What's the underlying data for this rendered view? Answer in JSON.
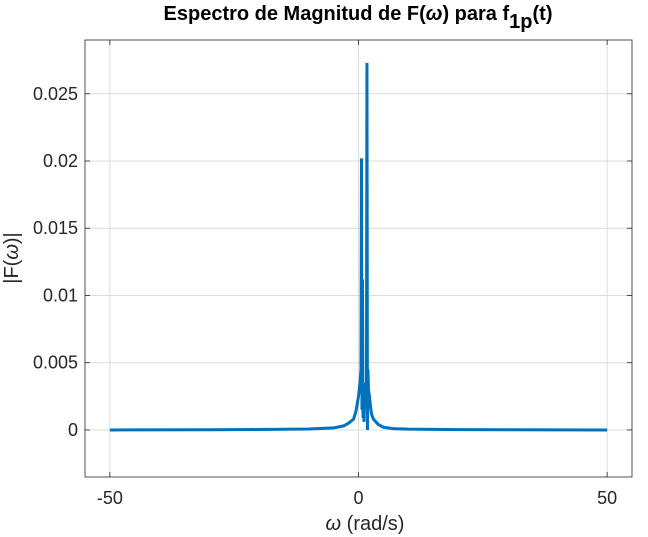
{
  "chart_data": {
    "type": "line",
    "title": {
      "main": "Espectro de Magnitud de F(",
      "omega": "ω",
      "mid": ") para f",
      "subscript": "1p",
      "end": "(t)"
    },
    "xlabel": {
      "omega": "ω",
      "rest": " (rad/s)"
    },
    "ylabel": {
      "pre": "|F(",
      "omega": "ω",
      "post": ")|"
    },
    "xlim": [
      -55,
      55
    ],
    "ylim": [
      -0.0035,
      0.029
    ],
    "xticks": [
      -50,
      0,
      50
    ],
    "xtick_labels": [
      "-50",
      "0",
      "50"
    ],
    "yticks": [
      0,
      0.005,
      0.01,
      0.015,
      0.02,
      0.025
    ],
    "ytick_labels": [
      "0",
      "0.005",
      "0.01",
      "0.015",
      "0.02",
      "0.025"
    ],
    "grid": true,
    "line_color": "#0072BD",
    "series": [
      {
        "x": [
          -50,
          -30,
          -20,
          -10,
          -5,
          -3,
          -2,
          -1,
          -0.5,
          0,
          0.3,
          0.5,
          0.6,
          0.7,
          0.8,
          0.9,
          1.0,
          1.1,
          1.2,
          1.4,
          1.6,
          1.7,
          1.8,
          1.9,
          2.0,
          2.2,
          2.4,
          2.6,
          3,
          4,
          5,
          7,
          10,
          20,
          30,
          50
        ],
        "y": [
          0,
          1e-05,
          3e-05,
          7e-05,
          0.00015,
          0.0003,
          0.0005,
          0.0008,
          0.0014,
          0.0025,
          0.0035,
          0.0045,
          0.0202,
          0.0015,
          0.0112,
          0.0009,
          0.0035,
          0.0006,
          0.002,
          0.0025,
          0.0035,
          0.0273,
          0.0,
          0.0045,
          0.003,
          0.0025,
          0.0018,
          0.0012,
          0.0008,
          0.0004,
          0.0002,
          0.0001,
          6e-05,
          2e-05,
          1e-05,
          0
        ]
      }
    ]
  }
}
